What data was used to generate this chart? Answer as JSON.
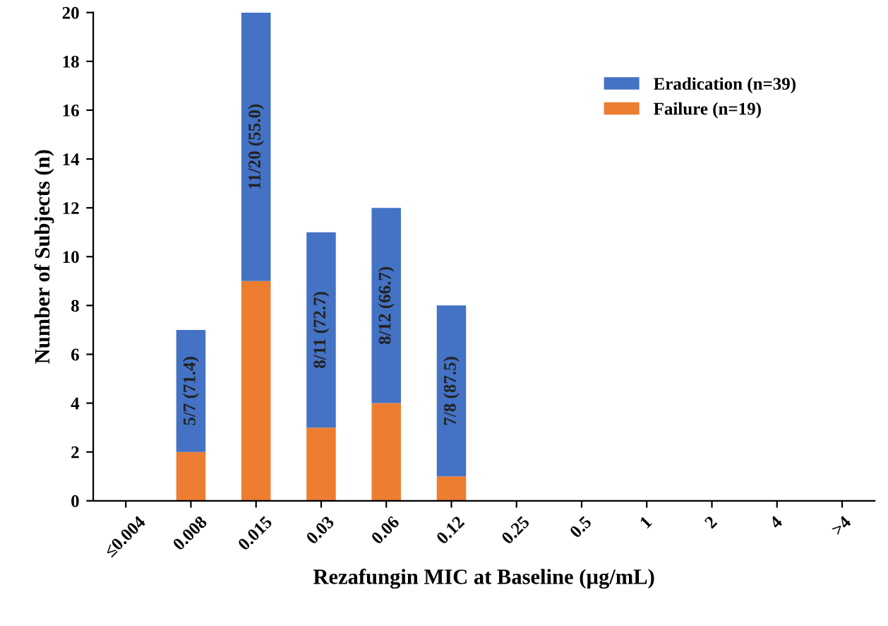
{
  "chart_data": {
    "type": "bar",
    "stacked": true,
    "xlabel": "Rezafungin MIC at Baseline (µg/mL)",
    "ylabel": "Number of Subjects (n)",
    "categories": [
      "≤0.004",
      "0.008",
      "0.015",
      "0.03",
      "0.06",
      "0.12",
      "0.25",
      "0.5",
      "1",
      "2",
      "4",
      ">4"
    ],
    "series": [
      {
        "name": "Failure (n=19)",
        "color": "#ed7d31",
        "values": [
          0,
          2,
          9,
          3,
          4,
          1,
          0,
          0,
          0,
          0,
          0,
          0
        ]
      },
      {
        "name": "Eradication (n=39)",
        "color": "#4472c4",
        "values": [
          0,
          5,
          11,
          8,
          8,
          7,
          0,
          0,
          0,
          0,
          0,
          0
        ],
        "value_labels": [
          null,
          "5/7 (71.4)",
          "11/20 (55.0)",
          "8/11 (72.7)",
          "8/12 (66.7)",
          "7/8 (87.5)",
          null,
          null,
          null,
          null,
          null,
          null
        ]
      }
    ],
    "ylim": [
      0,
      20
    ],
    "yticks": [
      0,
      2,
      4,
      6,
      8,
      10,
      12,
      14,
      16,
      18,
      20
    ],
    "grid": false,
    "legend": "top right"
  }
}
